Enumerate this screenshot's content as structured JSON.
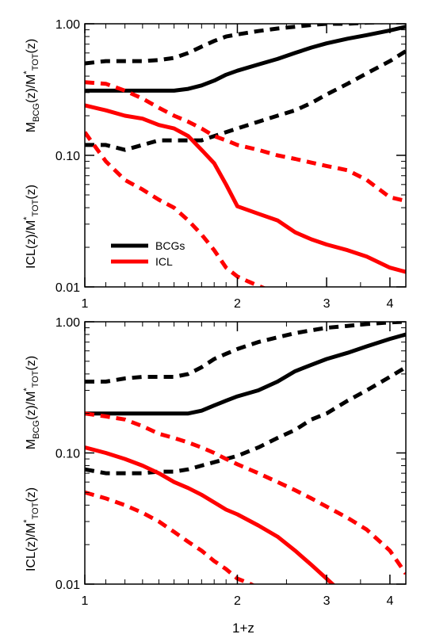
{
  "chart_data": [
    {
      "type": "line",
      "xscale": "log",
      "yscale": "log",
      "xlim": [
        1,
        4.3
      ],
      "ylim": [
        0.01,
        1.0
      ],
      "xticks": [
        1,
        2,
        3,
        4
      ],
      "xticklabels": [
        "1",
        "2",
        "3",
        "4"
      ],
      "yticks": [
        0.01,
        0.1,
        1.0
      ],
      "yticklabels": [
        "0.01",
        "0.10",
        "1.00"
      ],
      "xlabel": "",
      "ylabel_top": "MBCG(z)/M*TOT(z)",
      "ylabel_bottom": "ICL(z)/M*TOT(z)",
      "legend": {
        "placement": "lower-left",
        "entries": [
          {
            "label": "BCGs",
            "color": "#000000"
          },
          {
            "label": "ICL",
            "color": "#ff0000"
          }
        ]
      },
      "series": [
        {
          "name": "BCGs",
          "color": "#000000",
          "style": "solid",
          "x": [
            1.0,
            1.1,
            1.2,
            1.3,
            1.4,
            1.5,
            1.6,
            1.7,
            1.8,
            1.9,
            2.0,
            2.2,
            2.4,
            2.6,
            2.8,
            3.0,
            3.3,
            3.6,
            4.0,
            4.3
          ],
          "y": [
            0.31,
            0.31,
            0.31,
            0.31,
            0.31,
            0.31,
            0.32,
            0.34,
            0.37,
            0.41,
            0.44,
            0.49,
            0.54,
            0.6,
            0.66,
            0.71,
            0.77,
            0.82,
            0.89,
            0.95
          ]
        },
        {
          "name": "BCGs upper",
          "color": "#000000",
          "style": "dashed",
          "x": [
            1.0,
            1.1,
            1.2,
            1.3,
            1.4,
            1.5,
            1.6,
            1.7,
            1.8,
            1.9,
            2.0,
            2.2,
            2.4,
            2.6,
            2.8,
            3.0,
            3.3,
            3.6,
            4.0,
            4.3
          ],
          "y": [
            0.5,
            0.52,
            0.52,
            0.52,
            0.53,
            0.55,
            0.6,
            0.67,
            0.74,
            0.8,
            0.83,
            0.88,
            0.92,
            0.95,
            0.98,
            1.0,
            1.0,
            1.02,
            1.03,
            1.05
          ]
        },
        {
          "name": "BCGs lower",
          "color": "#000000",
          "style": "dashed",
          "x": [
            1.0,
            1.1,
            1.2,
            1.3,
            1.4,
            1.5,
            1.6,
            1.7,
            1.8,
            1.9,
            2.0,
            2.2,
            2.4,
            2.6,
            2.8,
            3.0,
            3.3,
            3.6,
            4.0,
            4.3
          ],
          "y": [
            0.12,
            0.12,
            0.11,
            0.12,
            0.13,
            0.13,
            0.13,
            0.13,
            0.14,
            0.15,
            0.16,
            0.18,
            0.2,
            0.22,
            0.25,
            0.29,
            0.35,
            0.42,
            0.52,
            0.62
          ]
        },
        {
          "name": "ICL",
          "color": "#ff0000",
          "style": "solid",
          "x": [
            1.0,
            1.1,
            1.2,
            1.3,
            1.4,
            1.5,
            1.6,
            1.7,
            1.8,
            1.9,
            2.0,
            2.2,
            2.4,
            2.6,
            2.8,
            3.0,
            3.3,
            3.6,
            4.0,
            4.3
          ],
          "y": [
            0.24,
            0.22,
            0.2,
            0.19,
            0.17,
            0.16,
            0.14,
            0.11,
            0.087,
            0.06,
            0.041,
            0.036,
            0.032,
            0.026,
            0.023,
            0.021,
            0.019,
            0.017,
            0.014,
            0.013
          ]
        },
        {
          "name": "ICL upper",
          "color": "#ff0000",
          "style": "dashed",
          "x": [
            1.0,
            1.1,
            1.2,
            1.3,
            1.4,
            1.5,
            1.6,
            1.7,
            1.8,
            1.9,
            2.0,
            2.2,
            2.4,
            2.6,
            2.8,
            3.0,
            3.3,
            3.6,
            4.0,
            4.3
          ],
          "y": [
            0.36,
            0.35,
            0.31,
            0.27,
            0.23,
            0.2,
            0.18,
            0.16,
            0.14,
            0.13,
            0.12,
            0.11,
            0.1,
            0.094,
            0.088,
            0.083,
            0.077,
            0.065,
            0.048,
            0.045
          ]
        },
        {
          "name": "ICL lower",
          "color": "#ff0000",
          "style": "dashed",
          "x": [
            1.0,
            1.1,
            1.2,
            1.3,
            1.4,
            1.5,
            1.6,
            1.7,
            1.8,
            1.9,
            2.0,
            2.1,
            2.2,
            2.3
          ],
          "y": [
            0.15,
            0.09,
            0.065,
            0.055,
            0.046,
            0.04,
            0.032,
            0.025,
            0.019,
            0.014,
            0.012,
            0.011,
            0.0102,
            0.0095
          ]
        }
      ]
    },
    {
      "type": "line",
      "xscale": "log",
      "yscale": "log",
      "xlim": [
        1,
        4.3
      ],
      "ylim": [
        0.01,
        1.0
      ],
      "xticks": [
        1,
        2,
        3,
        4
      ],
      "xticklabels": [
        "1",
        "2",
        "3",
        "4"
      ],
      "yticks": [
        0.01,
        0.1,
        1.0
      ],
      "yticklabels": [
        "0.01",
        "0.10",
        "1.00"
      ],
      "xlabel": "1+z",
      "ylabel_top": "MBCG(z)/M*TOT(z)",
      "ylabel_bottom": "ICL(z)/M*TOT(z)",
      "series": [
        {
          "name": "BCGs",
          "color": "#000000",
          "style": "solid",
          "x": [
            1.0,
            1.1,
            1.2,
            1.3,
            1.4,
            1.5,
            1.6,
            1.7,
            1.8,
            1.9,
            2.0,
            2.2,
            2.4,
            2.6,
            2.8,
            3.0,
            3.3,
            3.6,
            4.0,
            4.3
          ],
          "y": [
            0.2,
            0.2,
            0.2,
            0.2,
            0.2,
            0.2,
            0.2,
            0.21,
            0.23,
            0.25,
            0.27,
            0.3,
            0.35,
            0.42,
            0.47,
            0.52,
            0.58,
            0.65,
            0.74,
            0.8
          ]
        },
        {
          "name": "BCGs upper",
          "color": "#000000",
          "style": "dashed",
          "x": [
            1.0,
            1.1,
            1.2,
            1.3,
            1.4,
            1.5,
            1.6,
            1.7,
            1.8,
            1.9,
            2.0,
            2.2,
            2.4,
            2.6,
            2.8,
            3.0,
            3.3,
            3.6,
            4.0,
            4.3
          ],
          "y": [
            0.35,
            0.35,
            0.37,
            0.38,
            0.38,
            0.38,
            0.4,
            0.45,
            0.52,
            0.57,
            0.62,
            0.7,
            0.76,
            0.82,
            0.86,
            0.9,
            0.93,
            0.96,
            0.99,
            1.0
          ]
        },
        {
          "name": "BCGs lower",
          "color": "#000000",
          "style": "dashed",
          "x": [
            1.0,
            1.1,
            1.2,
            1.3,
            1.4,
            1.5,
            1.6,
            1.7,
            1.8,
            1.9,
            2.0,
            2.2,
            2.4,
            2.6,
            2.8,
            3.0,
            3.3,
            3.6,
            4.0,
            4.3
          ],
          "y": [
            0.075,
            0.07,
            0.07,
            0.07,
            0.072,
            0.072,
            0.075,
            0.08,
            0.085,
            0.09,
            0.095,
            0.11,
            0.13,
            0.15,
            0.18,
            0.2,
            0.25,
            0.3,
            0.38,
            0.45
          ]
        },
        {
          "name": "ICL",
          "color": "#ff0000",
          "style": "solid",
          "x": [
            1.0,
            1.1,
            1.2,
            1.3,
            1.4,
            1.5,
            1.6,
            1.7,
            1.8,
            1.9,
            2.0,
            2.2,
            2.4,
            2.6,
            2.8,
            3.0,
            3.1
          ],
          "y": [
            0.11,
            0.1,
            0.09,
            0.08,
            0.07,
            0.06,
            0.054,
            0.048,
            0.042,
            0.037,
            0.034,
            0.028,
            0.023,
            0.018,
            0.014,
            0.011,
            0.0098
          ]
        },
        {
          "name": "ICL upper",
          "color": "#ff0000",
          "style": "dashed",
          "x": [
            1.0,
            1.1,
            1.2,
            1.3,
            1.4,
            1.5,
            1.6,
            1.7,
            1.8,
            1.9,
            2.0,
            2.2,
            2.4,
            2.6,
            2.8,
            3.0,
            3.3,
            3.6,
            4.0,
            4.3
          ],
          "y": [
            0.2,
            0.19,
            0.18,
            0.16,
            0.14,
            0.13,
            0.12,
            0.11,
            0.1,
            0.09,
            0.082,
            0.07,
            0.06,
            0.052,
            0.045,
            0.039,
            0.032,
            0.026,
            0.018,
            0.012
          ]
        },
        {
          "name": "ICL lower",
          "color": "#ff0000",
          "style": "dashed",
          "x": [
            1.0,
            1.1,
            1.2,
            1.3,
            1.4,
            1.5,
            1.6,
            1.7,
            1.8,
            1.9,
            2.0,
            2.1,
            2.15
          ],
          "y": [
            0.05,
            0.045,
            0.04,
            0.035,
            0.03,
            0.025,
            0.021,
            0.018,
            0.015,
            0.013,
            0.011,
            0.0102,
            0.0098
          ]
        }
      ]
    }
  ]
}
